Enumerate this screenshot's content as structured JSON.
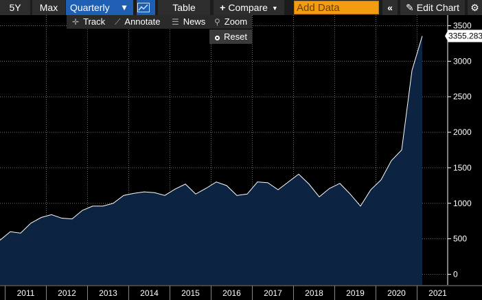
{
  "toolbar": {
    "range_5y": "5Y",
    "range_max": "Max",
    "frequency": "Quarterly",
    "table": "Table",
    "compare": "Compare",
    "add_data_placeholder": "Add Data",
    "edit_chart": "Edit Chart"
  },
  "subtoolbar": {
    "track": "Track",
    "annotate": "Annotate",
    "news": "News",
    "zoom": "Zoom"
  },
  "reset": "Reset",
  "icons": {
    "chart_type": "line-chart-icon",
    "compare": "plus-icon",
    "collapse": "double-chevron-left-icon",
    "edit": "pencil-icon",
    "settings": "gear-icon",
    "track": "crosshair-icon",
    "annotate": "pencil-icon",
    "news": "news-icon",
    "zoom": "magnifier-icon",
    "reset": "radio-icon"
  },
  "colors": {
    "background": "#000000",
    "area_fill": "#0d2342",
    "line": "#ffffff",
    "grid": "#777777",
    "accent_blue": "#1e5fb4",
    "add_data": "#f39c12"
  },
  "chart_data": {
    "type": "area",
    "x_label": "",
    "y_label": "",
    "x": [
      "2010Q4",
      "2011Q1",
      "2011Q2",
      "2011Q3",
      "2011Q4",
      "2012Q1",
      "2012Q2",
      "2012Q3",
      "2012Q4",
      "2013Q1",
      "2013Q2",
      "2013Q3",
      "2013Q4",
      "2014Q1",
      "2014Q2",
      "2014Q3",
      "2014Q4",
      "2015Q1",
      "2015Q2",
      "2015Q3",
      "2015Q4",
      "2016Q1",
      "2016Q2",
      "2016Q3",
      "2016Q4",
      "2017Q1",
      "2017Q2",
      "2017Q3",
      "2017Q4",
      "2018Q1",
      "2018Q2",
      "2018Q3",
      "2018Q4",
      "2019Q1",
      "2019Q2",
      "2019Q3",
      "2019Q4",
      "2020Q1",
      "2020Q2",
      "2020Q3",
      "2020Q4",
      "2021Q1"
    ],
    "values": [
      480,
      600,
      580,
      720,
      800,
      840,
      790,
      780,
      900,
      960,
      960,
      1000,
      1110,
      1140,
      1160,
      1150,
      1110,
      1200,
      1270,
      1130,
      1210,
      1300,
      1250,
      1110,
      1130,
      1300,
      1290,
      1190,
      1300,
      1410,
      1270,
      1090,
      1210,
      1280,
      1130,
      960,
      1190,
      1330,
      1600,
      1750,
      2870,
      3355.283
    ],
    "y_ticks": [
      0,
      500,
      1000,
      1500,
      2000,
      2500,
      3000,
      3500
    ],
    "y_range": [
      -150,
      3650
    ],
    "x_tick_labels": [
      "2011",
      "2012",
      "2013",
      "2014",
      "2015",
      "2016",
      "2017",
      "2018",
      "2019",
      "2020",
      "2021"
    ],
    "last_value_label": "3355.283",
    "grid": true,
    "axis_side": "right"
  }
}
